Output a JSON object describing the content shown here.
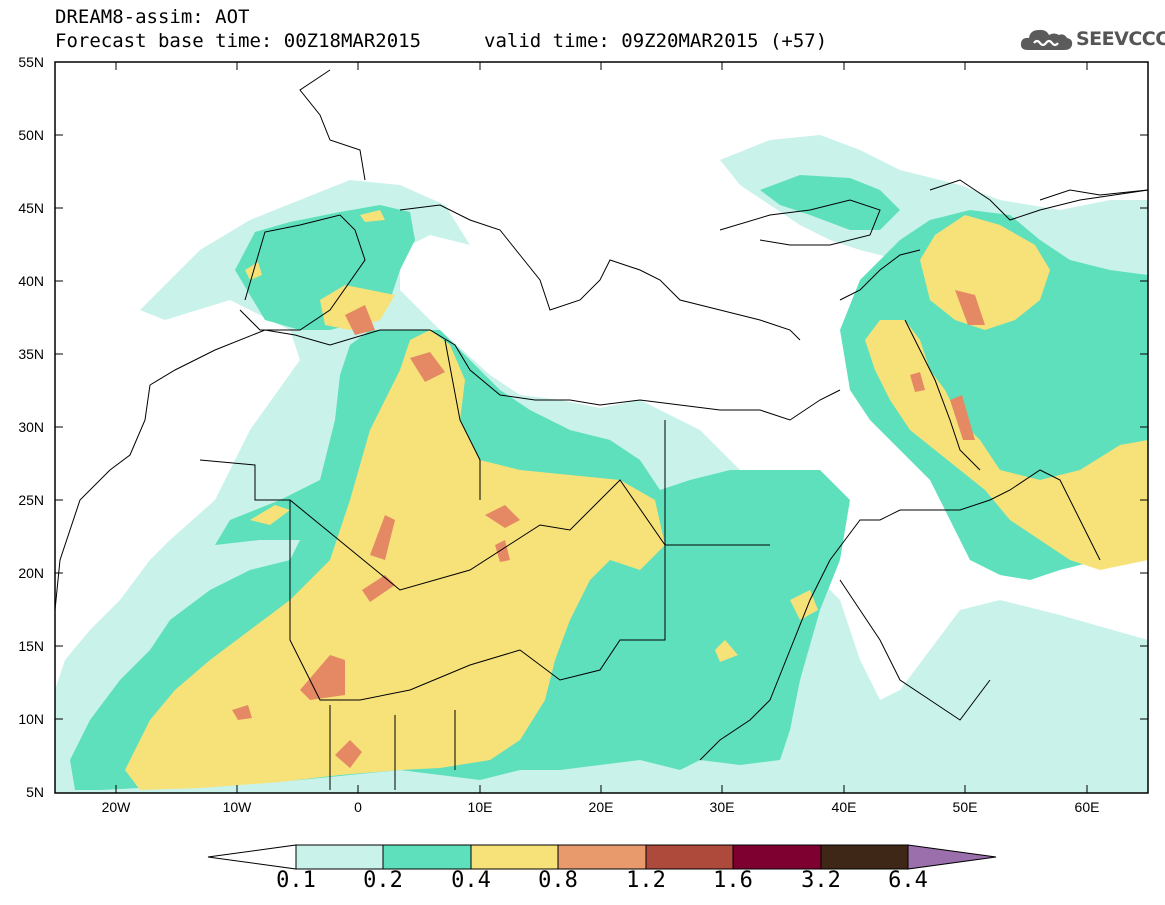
{
  "header": {
    "title": "DREAM8-assim: AOT",
    "base_time": "Forecast base time: 00Z18MAR2015",
    "valid_time": "valid time: 09Z20MAR2015 (+57)",
    "logo_text": "SEEVCCC",
    "logo_icon": "cloud-icon"
  },
  "map": {
    "lat_labels": [
      "55N",
      "50N",
      "45N",
      "40N",
      "35N",
      "30N",
      "25N",
      "20N",
      "15N",
      "10N",
      "5N"
    ],
    "lon_labels": [
      "20W",
      "10W",
      "0",
      "10E",
      "20E",
      "30E",
      "40E",
      "50E",
      "60E"
    ]
  },
  "colorbar": {
    "labels": [
      "0.1",
      "0.2",
      "0.4",
      "0.8",
      "1.2",
      "1.6",
      "3.2",
      "6.4"
    ],
    "colors": [
      "#c8f2ea",
      "#5ee0bd",
      "#f7e27a",
      "#e99a6c",
      "#ae4a3b",
      "#7d0030",
      "#3e2717",
      "#9b6fab"
    ],
    "under_color": "#ffffff"
  },
  "colors": {
    "level1": "#c8f2ea",
    "level2": "#5ee0bd",
    "level3": "#f7e27a",
    "level4": "#e58964",
    "coast": "#000000"
  }
}
